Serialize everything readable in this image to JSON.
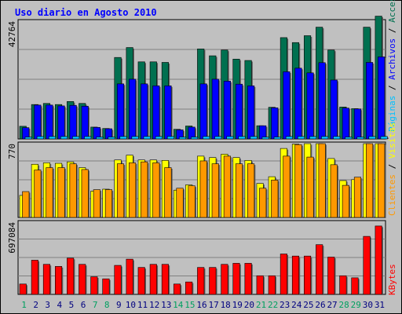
{
  "chart_data": {
    "type": "bar",
    "title": "Uso diario en Agosto 2010",
    "days": [
      "1",
      "2",
      "3",
      "4",
      "5",
      "6",
      "7",
      "8",
      "9",
      "10",
      "11",
      "12",
      "13",
      "14",
      "15",
      "16",
      "17",
      "18",
      "19",
      "20",
      "21",
      "22",
      "23",
      "24",
      "25",
      "26",
      "27",
      "28",
      "29",
      "30",
      "31"
    ],
    "weekend_days": [
      "1",
      "7",
      "8",
      "14",
      "15",
      "21",
      "22",
      "28",
      "29"
    ],
    "panels": [
      {
        "id": "hits",
        "ymax_label": "42764",
        "ymax": 42764,
        "series": [
          {
            "name": "Accesos",
            "color": "#007050",
            "values": [
              4600,
              12500,
              12900,
              12500,
              13600,
              12900,
              4300,
              3800,
              29600,
              33200,
              28000,
              28000,
              27800,
              3500,
              4700,
              32700,
              30200,
              32300,
              29000,
              28500,
              4800,
              11500,
              36800,
              35000,
              37500,
              40600,
              32300,
              11600,
              11000,
              40600,
              44600
            ]
          },
          {
            "name": "Archivos",
            "color": "#0000ff",
            "values": [
              4100,
              12300,
              12300,
              12000,
              12200,
              11900,
              4200,
              3700,
              20000,
              21700,
              20000,
              19300,
              19300,
              3300,
              4300,
              20000,
              21700,
              21000,
              19900,
              19300,
              4800,
              11300,
              24400,
              25700,
              24000,
              27700,
              21400,
              11200,
              10900,
              27800,
              29800
            ]
          },
          {
            "name": "Páginas",
            "color": "#00c0ff",
            "values": [
              700,
              900,
              900,
              900,
              900,
              900,
              700,
              700,
              900,
              900,
              900,
              900,
              900,
              700,
              700,
              900,
              900,
              900,
              900,
              900,
              700,
              700,
              900,
              900,
              900,
              900,
              900,
              700,
              700,
              900,
              900
            ]
          }
        ]
      },
      {
        "id": "visits",
        "ymax_label": "770",
        "ymax": 770,
        "series": [
          {
            "name": "Visitas",
            "color": "#ffff00",
            "values": [
              230,
              555,
              570,
              565,
              580,
              520,
              275,
              295,
              600,
              650,
              600,
              600,
              595,
              285,
              340,
              640,
              625,
              660,
              625,
              595,
              355,
              425,
              720,
              765,
              770,
              770,
              615,
              385,
              395,
              770,
              770
            ]
          },
          {
            "name": "Clientes",
            "color": "#ff9900",
            "values": [
              270,
              495,
              520,
              520,
              560,
              500,
              290,
              290,
              560,
              570,
              580,
              570,
              520,
              305,
              330,
              590,
              560,
              640,
              560,
              560,
              305,
              390,
              640,
              760,
              630,
              770,
              550,
              335,
              420,
              770,
              770
            ]
          }
        ]
      },
      {
        "id": "bytes",
        "ymax_label": "697084",
        "ymax": 697084,
        "series": [
          {
            "name": "KBytes",
            "color": "#ff0000",
            "values": [
              100000,
              330000,
              290000,
              270000,
              350000,
              290000,
              170000,
              150000,
              280000,
              340000,
              260000,
              290000,
              290000,
              100000,
              120000,
              260000,
              260000,
              290000,
              300000,
              300000,
              180000,
              180000,
              390000,
              370000,
              370000,
              480000,
              360000,
              180000,
              160000,
              560000,
              660000
            ]
          }
        ]
      }
    ],
    "legend_labels": {
      "accesos": "Accesos",
      "archivos": "Archivos",
      "paginas": "Páginas",
      "visitas": "Visitas",
      "clientes": "Clientes",
      "kbytes": "KBytes",
      "separator": " / "
    },
    "colors": {
      "background": "#c0c0c0",
      "plot_bg": "#c0c0c0",
      "grid": "#808080",
      "weekend_label": "#00a060",
      "weekday_label": "#000080",
      "title": "#0000ff"
    }
  }
}
